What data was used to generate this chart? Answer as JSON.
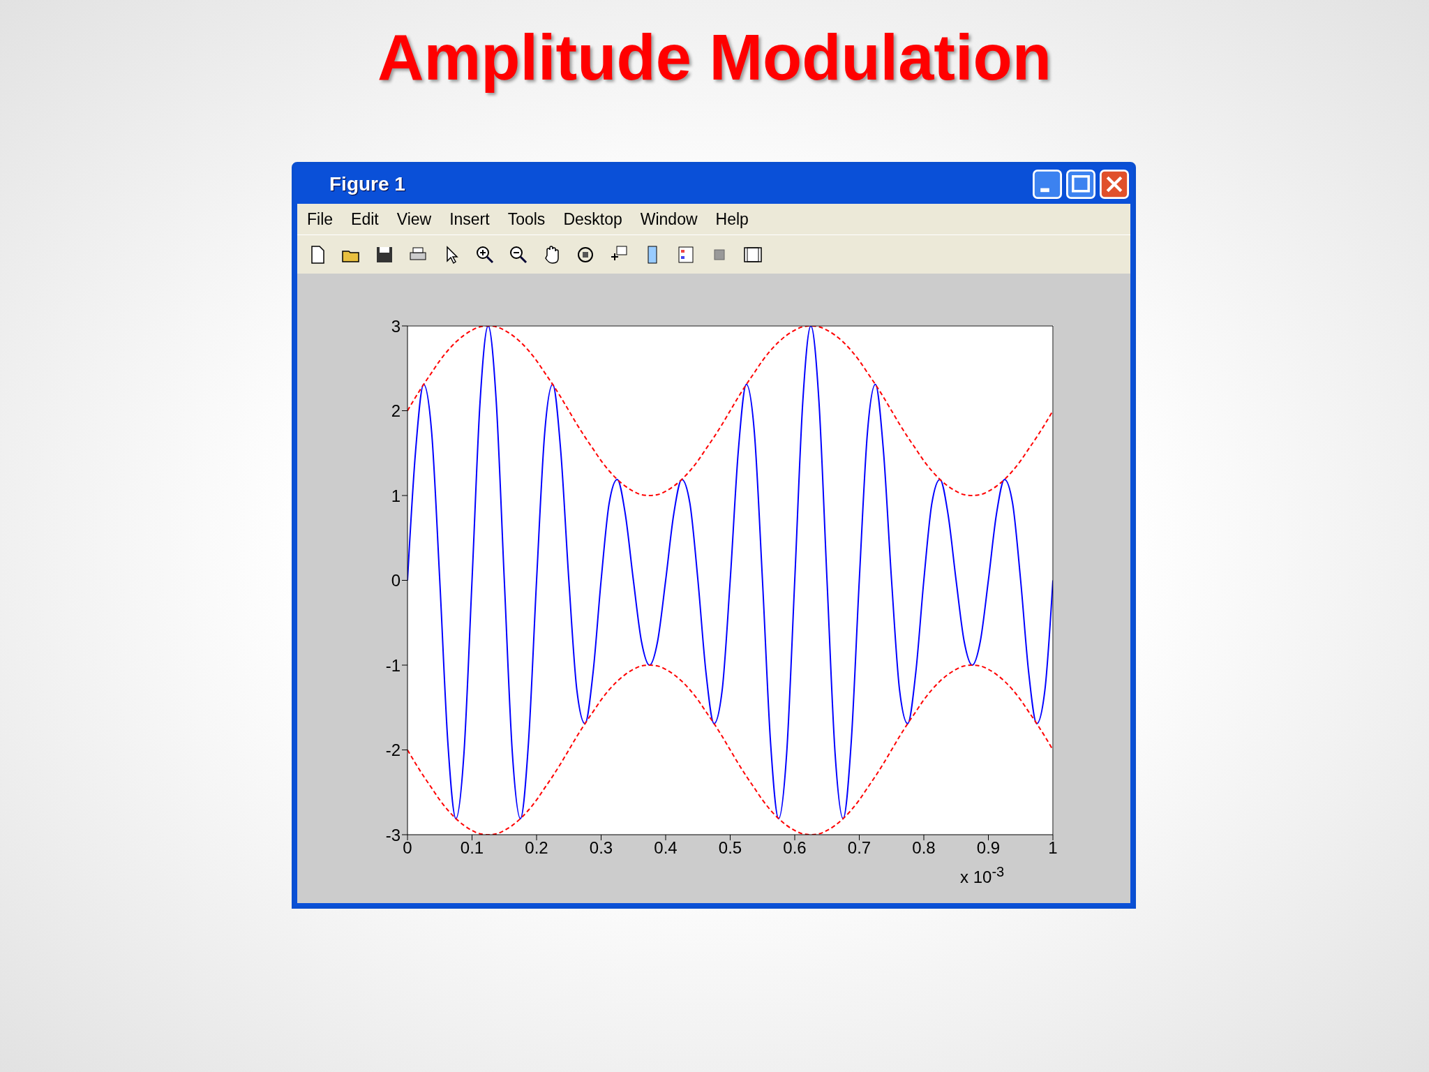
{
  "chart_data": {
    "type": "line",
    "title": "Amplitude Modulation",
    "annotations": [
      "x 10$^{-3}$",
      "Figure 1",
      "File",
      "Edit",
      "View",
      "Insert",
      "Tools",
      "Desktop",
      "Window",
      "Help"
    ],
    "x": [
      0,
      0.0125,
      0.025,
      0.0375,
      0.05,
      0.0625,
      0.075,
      0.0875,
      0.1,
      0.1125,
      0.125,
      0.1375,
      0.15,
      0.1625,
      0.175,
      0.1875,
      0.2,
      0.2125,
      0.225,
      0.2375,
      0.25,
      0.2625,
      0.275,
      0.2875,
      0.3,
      0.3125,
      0.325,
      0.3375,
      0.35,
      0.3625,
      0.375,
      0.3875,
      0.4,
      0.4125,
      0.425,
      0.4375,
      0.45,
      0.4625,
      0.475,
      0.4875,
      0.5,
      0.5125,
      0.525,
      0.5375,
      0.55,
      0.5625,
      0.575,
      0.5875,
      0.6,
      0.6125,
      0.625,
      0.6375,
      0.65,
      0.6625,
      0.675,
      0.6875,
      0.7,
      0.7125,
      0.725,
      0.7375,
      0.75,
      0.7625,
      0.775,
      0.7875,
      0.8,
      0.8125,
      0.825,
      0.8375,
      0.85,
      0.8625,
      0.875,
      0.8875,
      0.9,
      0.9125,
      0.925,
      0.9375,
      0.95,
      0.9625,
      0.975,
      0.9875,
      1
    ],
    "series": [
      {
        "color": "#0000ff",
        "line_style": "solid",
        "values": [
          0,
          1.52,
          2.31,
          1.74,
          0,
          -1.91,
          -2.81,
          -2.04,
          0,
          2.11,
          3,
          2.11,
          0,
          -2.04,
          -2.81,
          -1.91,
          0,
          1.73,
          2.31,
          1.52,
          0,
          -1.3,
          -1.69,
          -1.09,
          0,
          0.91,
          1.19,
          0.78,
          0,
          -0.72,
          -1,
          -0.72,
          0,
          0.78,
          1.19,
          0.91,
          0,
          -1.09,
          -1.69,
          -1.3,
          0,
          1.52,
          2.31,
          1.74,
          0,
          -1.91,
          -2.81,
          -2.04,
          0,
          2.11,
          3,
          2.11,
          0,
          -2.04,
          -2.81,
          -1.91,
          0,
          1.73,
          2.31,
          1.52,
          0,
          -1.3,
          -1.69,
          -1.09,
          0,
          0.91,
          1.19,
          0.78,
          0,
          -0.72,
          -1,
          -0.72,
          0,
          0.78,
          1.19,
          0.91,
          0,
          -1.09,
          -1.69,
          -1.3,
          0
        ]
      },
      {
        "color": "#ff0000",
        "line_style": "dashed",
        "values": [
          2,
          2.16,
          2.31,
          2.45,
          2.59,
          2.71,
          2.81,
          2.89,
          2.95,
          2.99,
          3,
          2.99,
          2.95,
          2.89,
          2.81,
          2.71,
          2.59,
          2.45,
          2.31,
          2.16,
          2,
          1.84,
          1.69,
          1.55,
          1.41,
          1.29,
          1.19,
          1.11,
          1.05,
          1.01,
          1,
          1.01,
          1.05,
          1.11,
          1.19,
          1.29,
          1.41,
          1.55,
          1.69,
          1.84,
          2,
          2.16,
          2.31,
          2.45,
          2.59,
          2.71,
          2.81,
          2.89,
          2.95,
          2.99,
          3,
          2.99,
          2.95,
          2.89,
          2.81,
          2.71,
          2.59,
          2.45,
          2.31,
          2.16,
          2,
          1.84,
          1.69,
          1.55,
          1.41,
          1.29,
          1.19,
          1.11,
          1.05,
          1.01,
          1,
          1.01,
          1.05,
          1.11,
          1.19,
          1.29,
          1.41,
          1.55,
          1.69,
          1.84,
          2
        ]
      },
      {
        "color": "#ff0000",
        "line_style": "dashed",
        "values": [
          -2,
          -2.16,
          -2.31,
          -2.45,
          -2.59,
          -2.71,
          -2.81,
          -2.89,
          -2.95,
          -2.99,
          -3,
          -2.99,
          -2.95,
          -2.89,
          -2.81,
          -2.71,
          -2.59,
          -2.45,
          -2.31,
          -2.16,
          -2,
          -1.84,
          -1.69,
          -1.55,
          -1.41,
          -1.29,
          -1.19,
          -1.11,
          -1.05,
          -1.01,
          -1,
          -1.01,
          -1.05,
          -1.11,
          -1.19,
          -1.29,
          -1.41,
          -1.55,
          -1.69,
          -1.84,
          -2,
          -2.16,
          -2.31,
          -2.45,
          -2.59,
          -2.71,
          -2.81,
          -2.89,
          -2.95,
          -2.99,
          -3,
          -2.99,
          -2.95,
          -2.89,
          -2.81,
          -2.71,
          -2.59,
          -2.45,
          -2.31,
          -2.16,
          -2,
          -1.84,
          -1.69,
          -1.55,
          -1.41,
          -1.29,
          -1.19,
          -1.11,
          -1.05,
          -1.01,
          -1,
          -1.01,
          -1.05,
          -1.11,
          -1.19,
          -1.29,
          -1.41,
          -1.55,
          -1.69,
          -1.84,
          -2
        ]
      }
    ],
    "xlim": [
      0,
      1
    ],
    "xticks": [
      0,
      0.1,
      0.2,
      0.3,
      0.4,
      0.5,
      0.6,
      0.7,
      0.8,
      0.9,
      1
    ],
    "ylim": [
      -3,
      3
    ],
    "yticks": [
      -3,
      -2,
      -1,
      0,
      1,
      2,
      3
    ],
    "marker": "none"
  }
}
